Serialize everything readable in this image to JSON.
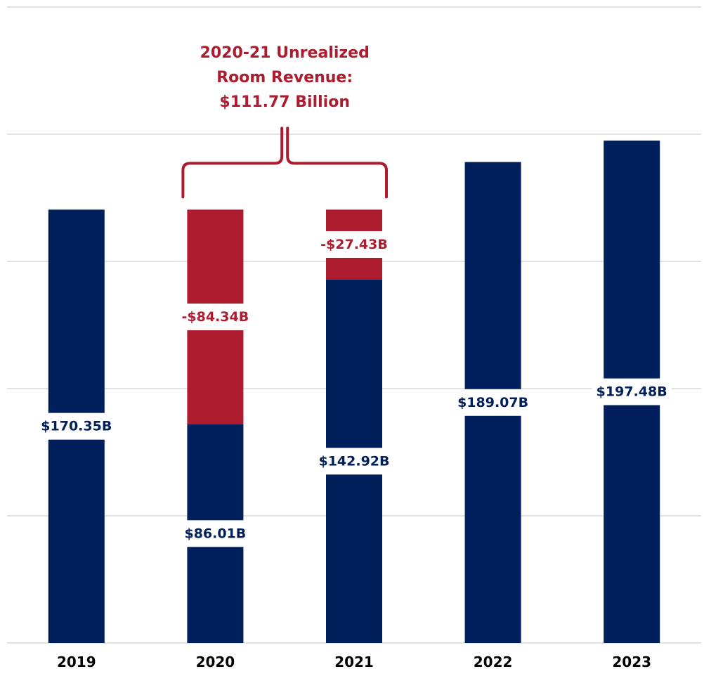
{
  "chart_data": {
    "type": "bar",
    "stacked": true,
    "categories": [
      "2019",
      "2020",
      "2021",
      "2022",
      "2023"
    ],
    "series": [
      {
        "name": "",
        "values": [
          170.35,
          86.01,
          142.92,
          189.07,
          197.48
        ]
      },
      {
        "name": "",
        "values": [
          0,
          84.34,
          27.43,
          0,
          0
        ]
      }
    ],
    "data_labels": {
      "realized": [
        "$170.35B",
        "$86.01B",
        "$142.92B",
        "$189.07B",
        "$197.48B"
      ],
      "unrealized": [
        "",
        "-$84.34B",
        "-$27.43B",
        "",
        ""
      ]
    },
    "annotation": {
      "lines": [
        "2020-21 Unrealized",
        "Room Revenue:",
        "$111.77 Billion"
      ],
      "spans": [
        "2020",
        "2021"
      ]
    },
    "ylim": [
      0,
      250
    ],
    "grid": true,
    "colors": {
      "realized": "#001f5b",
      "unrealized": "#ac1c2e",
      "grid": "#d9d9d9"
    }
  }
}
